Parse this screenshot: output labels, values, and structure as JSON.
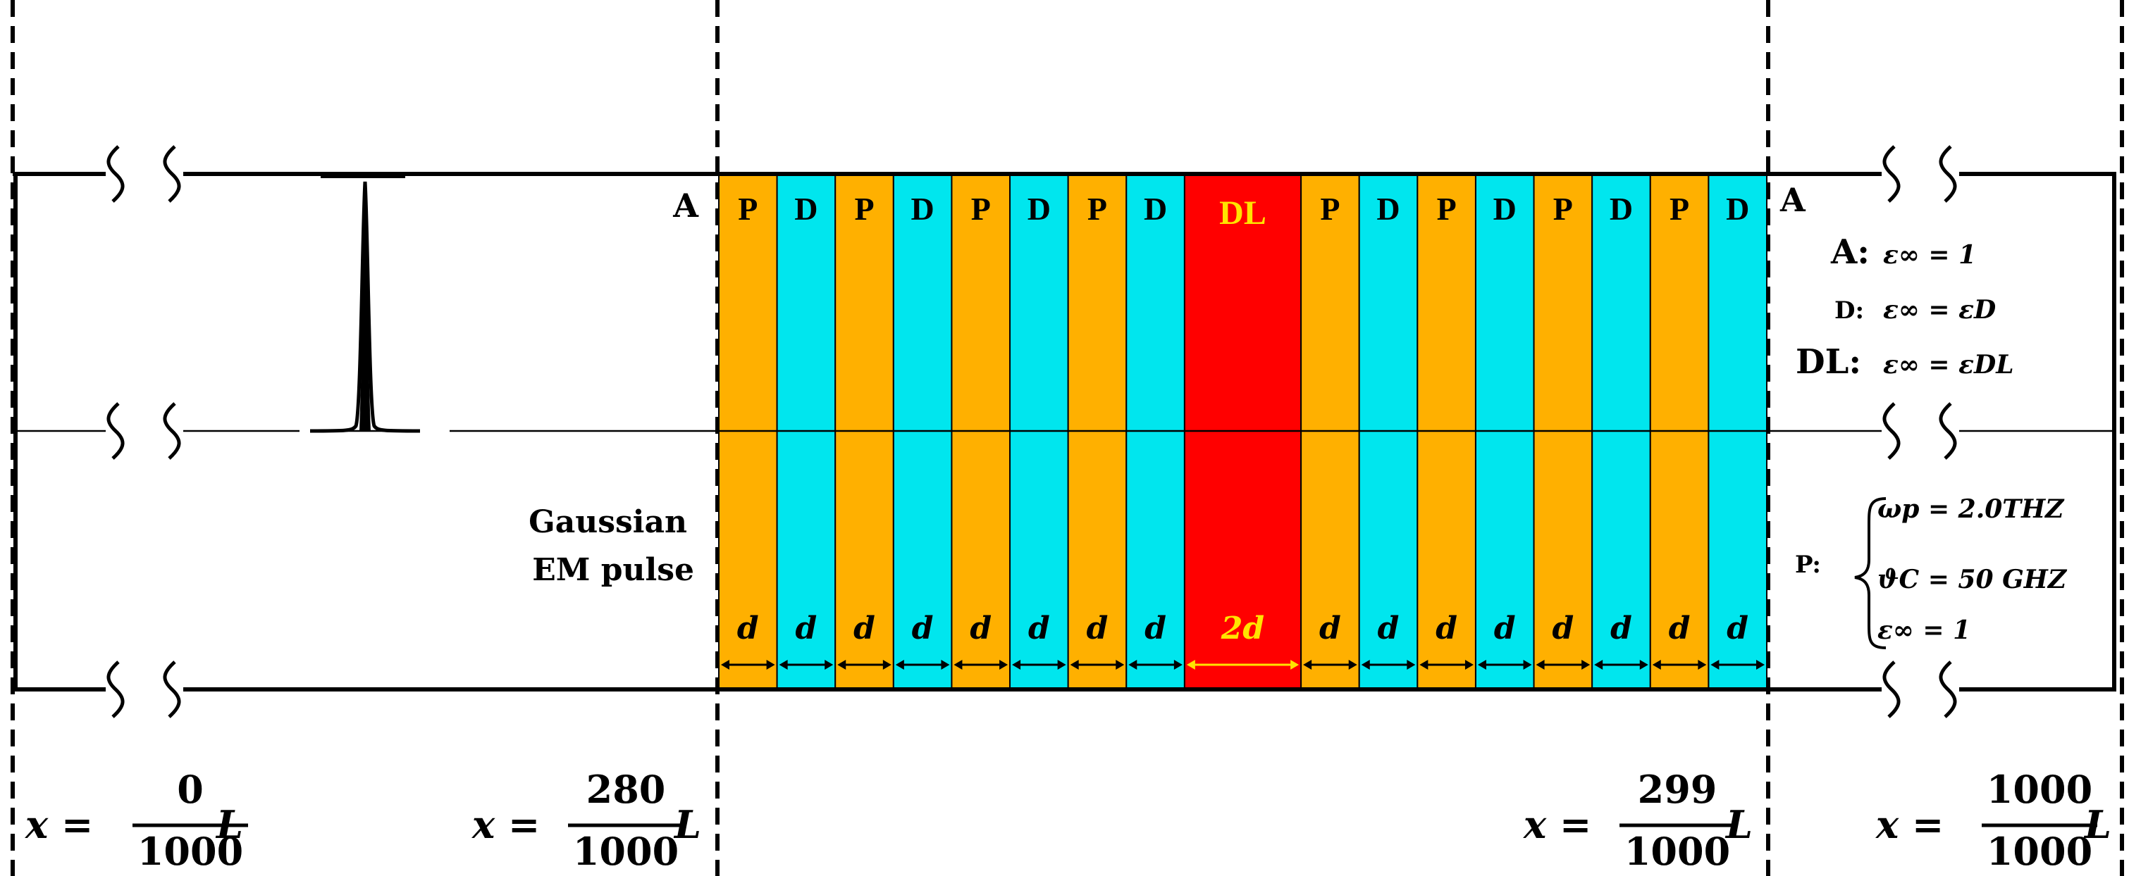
{
  "colors": {
    "P": "#FFB000",
    "D": "#00E6EE",
    "DL": "#FF0000",
    "dl_text": "#FFE400",
    "line": "#000000"
  },
  "layers": [
    {
      "label": "P",
      "type": "P",
      "width_label": "d"
    },
    {
      "label": "D",
      "type": "D",
      "width_label": "d"
    },
    {
      "label": "P",
      "type": "P",
      "width_label": "d"
    },
    {
      "label": "D",
      "type": "D",
      "width_label": "d"
    },
    {
      "label": "P",
      "type": "P",
      "width_label": "d"
    },
    {
      "label": "D",
      "type": "D",
      "width_label": "d"
    },
    {
      "label": "P",
      "type": "P",
      "width_label": "d"
    },
    {
      "label": "D",
      "type": "D",
      "width_label": "d"
    },
    {
      "label": "DL",
      "type": "DL",
      "width_label": "2d"
    },
    {
      "label": "P",
      "type": "P",
      "width_label": "d"
    },
    {
      "label": "D",
      "type": "D",
      "width_label": "d"
    },
    {
      "label": "P",
      "type": "P",
      "width_label": "d"
    },
    {
      "label": "D",
      "type": "D",
      "width_label": "d"
    },
    {
      "label": "P",
      "type": "P",
      "width_label": "d"
    },
    {
      "label": "D",
      "type": "D",
      "width_label": "d"
    },
    {
      "label": "P",
      "type": "P",
      "width_label": "d"
    },
    {
      "label": "D",
      "type": "D",
      "width_label": "d"
    }
  ],
  "region_left_label": "A",
  "region_right_label": "A",
  "pulse_label": {
    "line1": "Gaussian",
    "line2": "EM pulse"
  },
  "legend": {
    "a_key": "A:",
    "a_eq": "ε∞ = 1",
    "d_key": "D:",
    "d_eq": "ε∞ = εD",
    "dl_key": "DL:",
    "dl_eq": "ε∞ = εDL",
    "p_key": "P:",
    "p_line1": "ωp = 2.0THZ",
    "p_line2": "ϑC = 50 GHZ",
    "p_line3": "ε∞ = 1"
  },
  "positions": [
    {
      "lhs": "x =",
      "num": "0",
      "den": "1000",
      "rhs": "L"
    },
    {
      "lhs": "x =",
      "num": "280",
      "den": "1000",
      "rhs": "L"
    },
    {
      "lhs": "x =",
      "num": "299",
      "den": "1000",
      "rhs": "L"
    },
    {
      "lhs": "x =",
      "num": "1000",
      "den": "1000",
      "rhs": "L"
    }
  ]
}
